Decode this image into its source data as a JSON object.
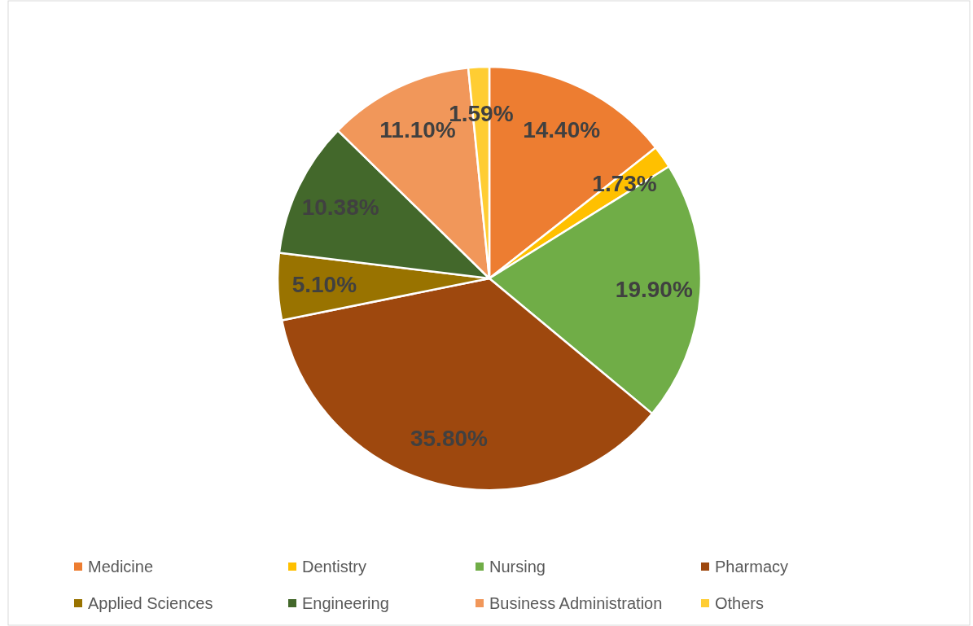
{
  "chart_data": {
    "type": "pie",
    "categories": [
      "Medicine",
      "Dentistry",
      "Nursing",
      "Pharmacy",
      "Applied Sciences",
      "Engineering",
      "Business Administration",
      "Others"
    ],
    "values": [
      14.4,
      1.73,
      19.9,
      35.8,
      5.1,
      10.38,
      11.1,
      1.59
    ],
    "value_labels": [
      "14.40%",
      "1.73%",
      "19.90%",
      "35.80%",
      "5.10%",
      "10.38%",
      "11.10%",
      "1.59%"
    ],
    "colors": [
      "#ed7d31",
      "#ffc000",
      "#70ad47",
      "#9e480e",
      "#997300",
      "#43682b",
      "#f1975a",
      "#ffcd33"
    ],
    "legend": "bottom"
  }
}
